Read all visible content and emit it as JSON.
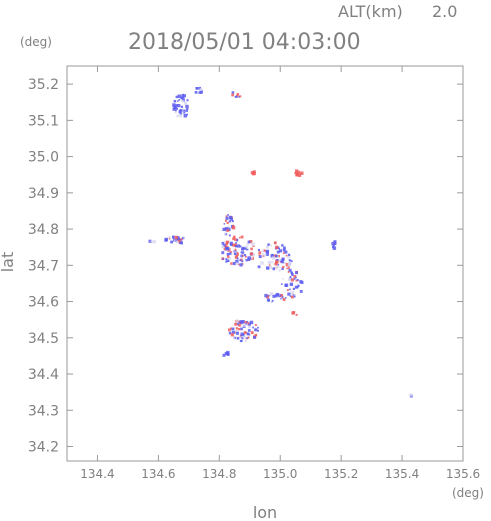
{
  "header": {
    "altitude_label": "ALT(km)",
    "altitude_value": "2.0",
    "timestamp": "2018/05/01 04:03:00"
  },
  "chart_data": {
    "type": "scatter",
    "title": "2018/05/01 04:03:00",
    "xlabel": "lon",
    "ylabel": "lat",
    "x_unit": "(deg)",
    "y_unit": "(deg)",
    "xlim": [
      134.3,
      135.6
    ],
    "ylim": [
      34.16,
      35.25
    ],
    "x_ticks": [
      "134.4",
      "134.6",
      "134.8",
      "135.0",
      "135.2",
      "135.4",
      "135.6"
    ],
    "x_tick_values": [
      134.4,
      134.6,
      134.8,
      135.0,
      135.2,
      135.4,
      135.6
    ],
    "y_ticks": [
      "34.2",
      "34.3",
      "34.4",
      "34.5",
      "34.6",
      "34.7",
      "34.8",
      "34.9",
      "35.0",
      "35.1",
      "35.2"
    ],
    "y_tick_values": [
      34.2,
      34.3,
      34.4,
      34.5,
      34.6,
      34.7,
      34.8,
      34.9,
      35.0,
      35.1,
      35.2
    ],
    "colors": {
      "negative": "#5c5cf0",
      "positive": "#f05c5c",
      "neutral": "#d8d8ee"
    },
    "clusters": [
      {
        "lon": 134.68,
        "lat": 35.14,
        "rlon": 0.03,
        "rlat": 0.035,
        "n": 40,
        "red": 0.0
      },
      {
        "lon": 134.73,
        "lat": 35.18,
        "rlon": 0.012,
        "rlat": 0.01,
        "n": 8,
        "red": 0.0
      },
      {
        "lon": 134.85,
        "lat": 35.17,
        "rlon": 0.025,
        "rlat": 0.008,
        "n": 10,
        "red": 0.5
      },
      {
        "lon": 134.91,
        "lat": 34.955,
        "rlon": 0.008,
        "rlat": 0.006,
        "n": 4,
        "red": 1.0
      },
      {
        "lon": 135.06,
        "lat": 34.955,
        "rlon": 0.012,
        "rlat": 0.008,
        "n": 8,
        "red": 0.9
      },
      {
        "lon": 134.58,
        "lat": 34.765,
        "rlon": 0.01,
        "rlat": 0.005,
        "n": 4,
        "red": 0.1
      },
      {
        "lon": 134.66,
        "lat": 34.77,
        "rlon": 0.04,
        "rlat": 0.01,
        "n": 28,
        "red": 0.2
      },
      {
        "lon": 134.83,
        "lat": 34.81,
        "rlon": 0.018,
        "rlat": 0.03,
        "n": 24,
        "red": 0.3
      },
      {
        "lon": 134.86,
        "lat": 34.74,
        "rlon": 0.06,
        "rlat": 0.04,
        "n": 90,
        "red": 0.35
      },
      {
        "lon": 134.98,
        "lat": 34.72,
        "rlon": 0.06,
        "rlat": 0.045,
        "n": 80,
        "red": 0.3
      },
      {
        "lon": 135.04,
        "lat": 34.65,
        "rlon": 0.035,
        "rlat": 0.04,
        "n": 40,
        "red": 0.3
      },
      {
        "lon": 134.98,
        "lat": 34.61,
        "rlon": 0.04,
        "rlat": 0.012,
        "n": 20,
        "red": 0.15
      },
      {
        "lon": 135.05,
        "lat": 34.57,
        "rlon": 0.008,
        "rlat": 0.008,
        "n": 3,
        "red": 0.8
      },
      {
        "lon": 134.88,
        "lat": 34.52,
        "rlon": 0.05,
        "rlat": 0.03,
        "n": 70,
        "red": 0.3
      },
      {
        "lon": 134.82,
        "lat": 34.455,
        "rlon": 0.01,
        "rlat": 0.008,
        "n": 6,
        "red": 0.1
      },
      {
        "lon": 135.18,
        "lat": 34.76,
        "rlon": 0.012,
        "rlat": 0.015,
        "n": 8,
        "red": 0.1
      },
      {
        "lon": 135.43,
        "lat": 34.345,
        "rlon": 0.006,
        "rlat": 0.006,
        "n": 4,
        "red": 0.0
      }
    ]
  }
}
